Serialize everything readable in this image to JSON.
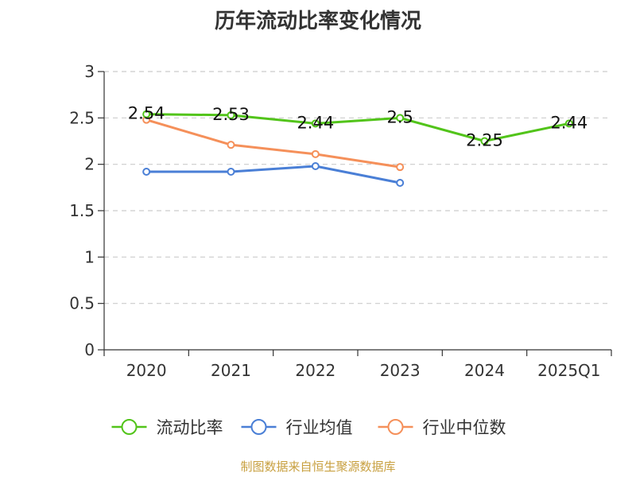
{
  "chart_data": {
    "type": "line",
    "title": "历年流动比率变化情况",
    "categories": [
      "2020",
      "2021",
      "2022",
      "2023",
      "2024",
      "2025Q1"
    ],
    "ylim": [
      0,
      3
    ],
    "yticks": [
      "0",
      "0.5",
      "1",
      "1.5",
      "2",
      "2.5",
      "3"
    ],
    "grid": true,
    "legend_position": "bottom",
    "series": [
      {
        "name": "流动比率",
        "color": "#52c41a",
        "values": [
          2.54,
          2.53,
          2.44,
          2.5,
          2.25,
          2.44
        ],
        "labels": [
          "2.54",
          "2.53",
          "2.44",
          "2.5",
          "2.25",
          "2.44"
        ]
      },
      {
        "name": "行业均值",
        "color": "#4a7fd6",
        "values": [
          1.92,
          1.92,
          1.98,
          1.8,
          null,
          null
        ]
      },
      {
        "name": "行业中位数",
        "color": "#f5905a",
        "values": [
          2.48,
          2.21,
          2.11,
          1.97,
          null,
          null
        ]
      }
    ]
  },
  "footer": {
    "text": "制图数据来自恒生聚源数据库",
    "color": "#c8a040"
  }
}
